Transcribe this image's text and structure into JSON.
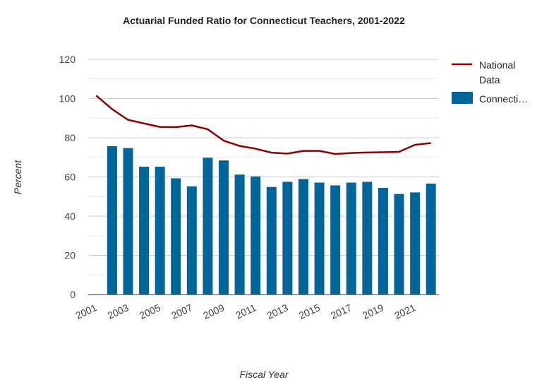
{
  "chart_data": {
    "type": "bar",
    "title": "Actuarial Funded Ratio for Connecticut Teachers, 2001-2022",
    "xlabel": "Fiscal Year",
    "ylabel": "Percent",
    "ylim": [
      0,
      120
    ],
    "yticks": [
      0,
      20,
      40,
      60,
      80,
      100,
      120
    ],
    "grid": true,
    "legend_position": "right",
    "categories": [
      "2001",
      "2002",
      "2003",
      "2004",
      "2005",
      "2006",
      "2007",
      "2008",
      "2009",
      "2010",
      "2011",
      "2012",
      "2013",
      "2014",
      "2015",
      "2016",
      "2017",
      "2018",
      "2019",
      "2020",
      "2021",
      "2022"
    ],
    "x_tick_labels": [
      "2001",
      "2003",
      "2005",
      "2007",
      "2009",
      "2011",
      "2013",
      "2015",
      "2017",
      "2019",
      "2021"
    ],
    "series": [
      {
        "name": "National Data",
        "kind": "line",
        "color": "#8b0000",
        "values": [
          101.5,
          94.6,
          89.1,
          87.3,
          85.5,
          85.4,
          86.3,
          84.3,
          78.5,
          75.8,
          74.4,
          72.4,
          71.9,
          73.3,
          73.3,
          71.7,
          72.2,
          72.5,
          72.6,
          72.8,
          76.4,
          77.3
        ]
      },
      {
        "name": "Connecticut",
        "legend_label": "Connecti…",
        "kind": "bar",
        "color": "#006699",
        "values": [
          null,
          75.7,
          74.7,
          65.2,
          65.2,
          59.3,
          55.2,
          69.8,
          68.4,
          61.2,
          60.3,
          54.9,
          57.5,
          58.9,
          57.1,
          55.7,
          57.1,
          57.5,
          54.4,
          51.3,
          52.1,
          56.6
        ]
      }
    ]
  }
}
